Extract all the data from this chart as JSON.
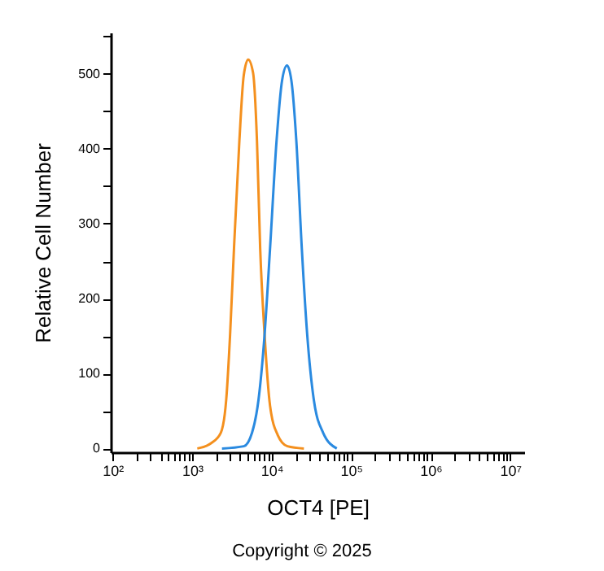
{
  "chart_data": {
    "type": "line",
    "xlabel": "OCT4 [PE]",
    "ylabel": "Relative Cell Number",
    "log": "x",
    "grid": false,
    "line_style": "solid",
    "marker": "none",
    "xlim": [
      95,
      15000000
    ],
    "ylim": [
      -5,
      555
    ],
    "xticks": [
      {
        "value": 100,
        "label": "10²"
      },
      {
        "value": 200,
        "label": null
      },
      {
        "value": 300,
        "label": null
      },
      {
        "value": 400,
        "label": null
      },
      {
        "value": 500,
        "label": null
      },
      {
        "value": 600,
        "label": null
      },
      {
        "value": 700,
        "label": null
      },
      {
        "value": 800,
        "label": null
      },
      {
        "value": 900,
        "label": null
      },
      {
        "value": 1000,
        "label": "10³"
      },
      {
        "value": 2000,
        "label": null
      },
      {
        "value": 3000,
        "label": null
      },
      {
        "value": 4000,
        "label": null
      },
      {
        "value": 5000,
        "label": null
      },
      {
        "value": 6000,
        "label": null
      },
      {
        "value": 7000,
        "label": null
      },
      {
        "value": 8000,
        "label": null
      },
      {
        "value": 9000,
        "label": null
      },
      {
        "value": 10000,
        "label": "10⁴"
      },
      {
        "value": 20000,
        "label": null
      },
      {
        "value": 30000,
        "label": null
      },
      {
        "value": 40000,
        "label": null
      },
      {
        "value": 50000,
        "label": null
      },
      {
        "value": 60000,
        "label": null
      },
      {
        "value": 70000,
        "label": null
      },
      {
        "value": 80000,
        "label": null
      },
      {
        "value": 90000,
        "label": null
      },
      {
        "value": 100000,
        "label": "10⁵"
      },
      {
        "value": 200000,
        "label": null
      },
      {
        "value": 300000,
        "label": null
      },
      {
        "value": 400000,
        "label": null
      },
      {
        "value": 500000,
        "label": null
      },
      {
        "value": 600000,
        "label": null
      },
      {
        "value": 700000,
        "label": null
      },
      {
        "value": 800000,
        "label": null
      },
      {
        "value": 900000,
        "label": null
      },
      {
        "value": 1000000,
        "label": "10⁶"
      },
      {
        "value": 2000000,
        "label": null
      },
      {
        "value": 3000000,
        "label": null
      },
      {
        "value": 4000000,
        "label": null
      },
      {
        "value": 5000000,
        "label": null
      },
      {
        "value": 6000000,
        "label": null
      },
      {
        "value": 7000000,
        "label": null
      },
      {
        "value": 8000000,
        "label": null
      },
      {
        "value": 9000000,
        "label": null
      },
      {
        "value": 10000000,
        "label": "10⁷"
      }
    ],
    "yticks": [
      0,
      {
        "value": 50,
        "label": null
      },
      100,
      {
        "value": 150,
        "label": null
      },
      200,
      {
        "value": 250,
        "label": null
      },
      300,
      {
        "value": 350,
        "label": null
      },
      400,
      {
        "value": 450,
        "label": null
      },
      500,
      {
        "value": 550,
        "label": null
      }
    ],
    "annotations": [
      "Copyright © 2025"
    ],
    "series": [
      {
        "color": "#f4901e",
        "x": [
          1164,
          1730,
          2300,
          2690,
          3010,
          3370,
          3940,
          4470,
          5080,
          5860,
          6550,
          7190,
          8170,
          9570,
          11940,
          15850,
          25500
        ],
        "values": [
          0,
          7,
          21,
          65,
          152,
          267,
          411,
          498,
          519,
          501,
          411,
          267,
          152,
          57,
          18,
          3,
          0
        ]
      },
      {
        "color": "#2a8ae0",
        "x": [
          2380,
          4480,
          5680,
          6850,
          8170,
          9570,
          11560,
          13550,
          15630,
          17740,
          20460,
          23990,
          28050,
          33960,
          44460,
          66070
        ],
        "values": [
          0,
          3,
          21,
          65,
          152,
          267,
          411,
          491,
          511,
          491,
          411,
          267,
          152,
          65,
          21,
          0
        ]
      }
    ]
  }
}
